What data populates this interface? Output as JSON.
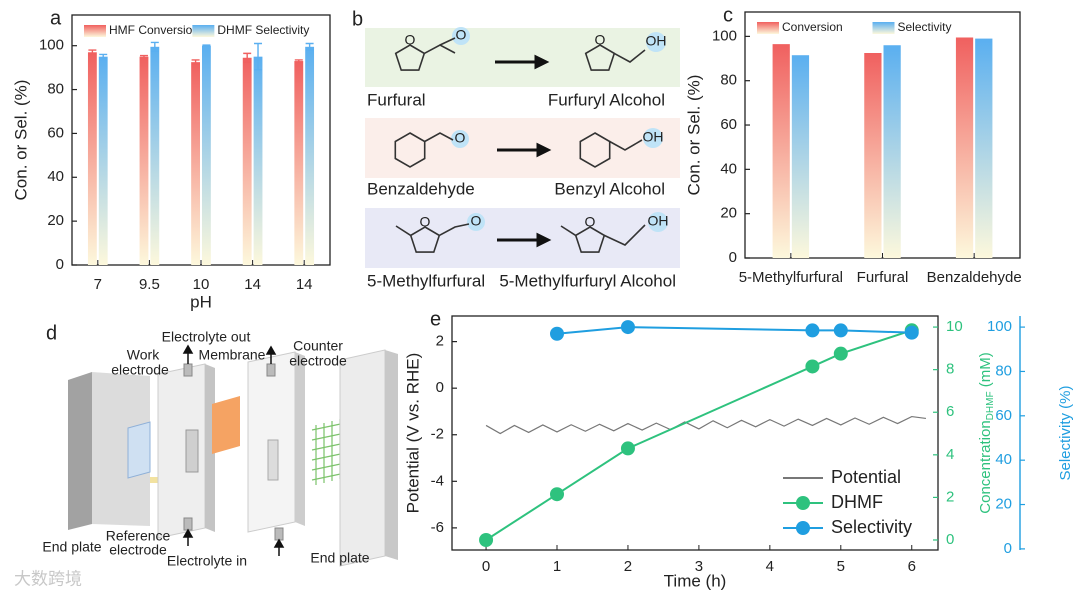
{
  "chart_data": [
    {
      "type": "bar",
      "letter": "a",
      "ylabel": "Con. or Sel. (%)",
      "xlabel": "pH",
      "categories": [
        "7",
        "9.5",
        "10",
        "14",
        "14"
      ],
      "series": [
        {
          "name": "HMF Conversion",
          "color": "#f0605f",
          "values": [
            97,
            95,
            92.5,
            94.5,
            93
          ],
          "errors": [
            1,
            0.5,
            1,
            2,
            0.5
          ]
        },
        {
          "name": "DHMF Selectivity",
          "color": "#5aaff0",
          "values": [
            95,
            99.5,
            100,
            95,
            99.5
          ],
          "errors": [
            1,
            2,
            0.3,
            6,
            1.5
          ]
        }
      ],
      "gradient_to": "#fdf8dc",
      "ylim": [
        0,
        114
      ],
      "yticks": [
        0,
        20,
        40,
        60,
        80,
        100
      ],
      "legend": "top"
    },
    {
      "type": "bar",
      "letter": "c",
      "ylabel": "Con. or Sel. (%)",
      "categories": [
        "5-Methylfurfural",
        "Furfural",
        "Benzaldehyde"
      ],
      "series": [
        {
          "name": "Conversion",
          "color": "#f0605f",
          "values": [
            96.5,
            92.5,
            99.5
          ]
        },
        {
          "name": "Selectivity",
          "color": "#5aaff0",
          "values": [
            91.5,
            96,
            99
          ]
        }
      ],
      "gradient_to": "#fdf8dc",
      "ylim": [
        0,
        111
      ],
      "yticks": [
        0,
        20,
        40,
        60,
        80,
        100
      ],
      "legend": "top"
    },
    {
      "type": "line",
      "letter": "e",
      "xlabel": "Time (h)",
      "ylabel": "Potential (V vs. RHE)",
      "y2label": {
        "main": "Concentration",
        "sub": "DHMF",
        "unit": " (mM)"
      },
      "y3label": "Selectivity (%)",
      "xlim": [
        -0.48,
        6.37
      ],
      "xticks": [
        0,
        1,
        2,
        3,
        4,
        5,
        6
      ],
      "ylim": [
        -6.95,
        3.1
      ],
      "yticks": [
        -6,
        -4,
        -2,
        0,
        2
      ],
      "y2lim": [
        -0.47,
        10.52
      ],
      "y2ticks": [
        0,
        2,
        4,
        6,
        8,
        10
      ],
      "y3lim": [
        -0.5,
        105
      ],
      "y3ticks": [
        0,
        20,
        40,
        60,
        80,
        100
      ],
      "legend": "lower right",
      "series": [
        {
          "name": "Potential",
          "color": "#777777",
          "marker": false,
          "x": [
            0,
            0.2,
            0.4,
            0.6,
            0.8,
            1,
            1.2,
            1.4,
            1.6,
            1.8,
            2,
            2.2,
            2.4,
            2.6,
            2.8,
            3,
            3.2,
            3.4,
            3.6,
            3.8,
            4,
            4.2,
            4.4,
            4.6,
            4.8,
            5,
            5.2,
            5.4,
            5.6,
            5.8,
            6,
            6.2
          ],
          "values": [
            -1.6,
            -1.95,
            -1.6,
            -1.9,
            -1.58,
            -1.88,
            -1.57,
            -1.85,
            -1.55,
            -1.83,
            -1.52,
            -1.8,
            -1.5,
            -1.78,
            -1.45,
            -1.75,
            -1.4,
            -1.7,
            -1.38,
            -1.66,
            -1.35,
            -1.63,
            -1.33,
            -1.6,
            -1.3,
            -1.58,
            -1.28,
            -1.55,
            -1.25,
            -1.52,
            -1.22,
            -1.3
          ]
        },
        {
          "name": "DHMF",
          "color": "#2ec27e",
          "marker": true,
          "axis": "y2",
          "x": [
            0,
            1,
            2,
            4.6,
            5,
            6
          ],
          "values": [
            0,
            2.15,
            4.3,
            8.15,
            8.75,
            9.85
          ]
        },
        {
          "name": "Selectivity",
          "color": "#1f9ee0",
          "marker": true,
          "axis": "y3",
          "x": [
            1,
            2,
            4.6,
            5,
            6
          ],
          "values": [
            97,
            100,
            98.5,
            98.5,
            97.5
          ]
        }
      ]
    }
  ],
  "diagram_b": {
    "letter": "b",
    "atom_o": "O",
    "atom_oh": "OH",
    "rows": [
      {
        "reactant": "Furfural",
        "product": "Furfuryl Alcohol"
      },
      {
        "reactant": "Benzaldehyde",
        "product": "Benzyl Alcohol"
      },
      {
        "reactant": "5-Methylfurfural",
        "product": "5-Methylfurfuryl Alcohol"
      }
    ]
  },
  "diagram_d": {
    "letter": "d",
    "work_electrode": [
      "Work",
      "electrode"
    ],
    "electrolyte_out": "Electrolyte  out",
    "membrane": "Membrane",
    "counter_electrode": [
      "Counter",
      "electrode"
    ],
    "reference_electrode": [
      "Reference",
      "electrode"
    ],
    "end_plate_left": "End plate",
    "end_plate_right": "End plate",
    "electrolyte_in": "Electrolyte  in"
  },
  "watermark": "大数跨境"
}
